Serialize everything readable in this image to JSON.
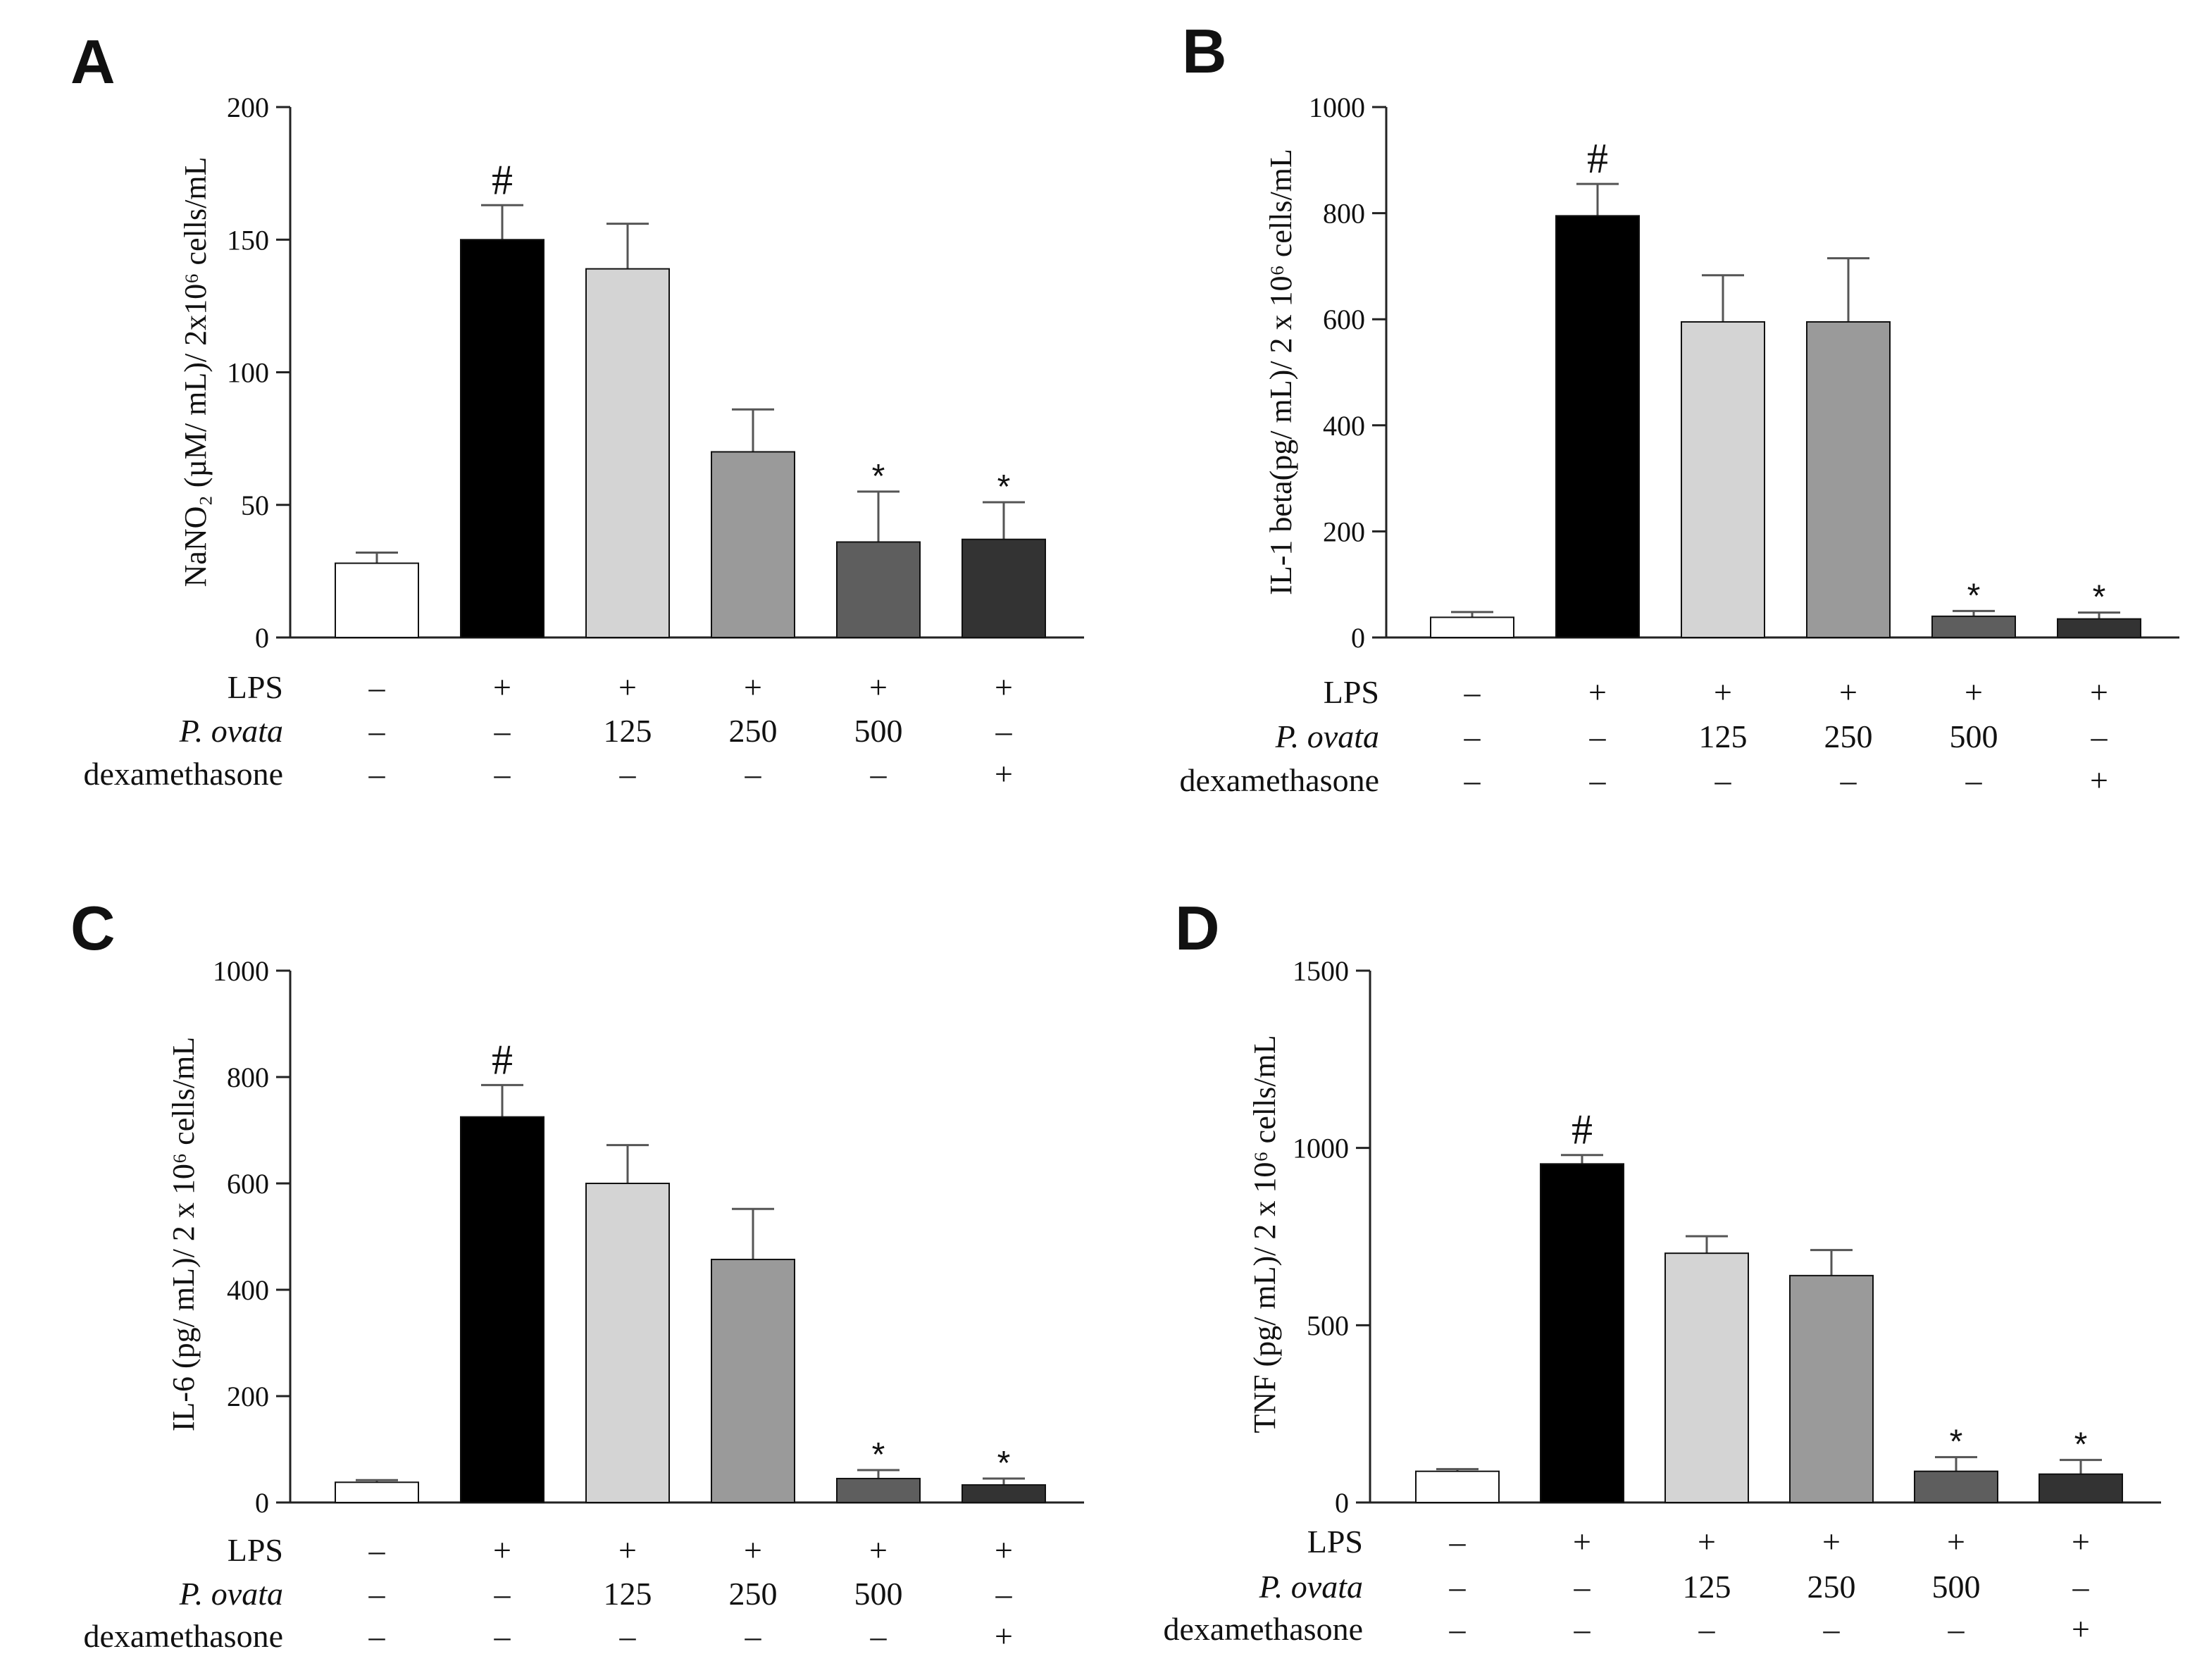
{
  "chart_data": [
    {
      "type": "bar",
      "panel": "A",
      "categories": [
        "Control",
        "LPS",
        "LPS + P. ovata 125",
        "LPS + P. ovata 250",
        "LPS + P. ovata 500",
        "LPS + dexamethasone"
      ],
      "values": [
        28,
        150,
        139,
        70,
        36,
        37
      ],
      "errors": [
        4,
        13,
        17,
        16,
        19,
        14
      ],
      "annotations": [
        "",
        "#",
        "",
        "",
        "*",
        "*"
      ],
      "ylim": [
        0,
        200
      ],
      "yticks": [
        0,
        50,
        100,
        150,
        200
      ],
      "ylabel": "NaNO₂ (µM/ mL)/ 2x10⁶ cells/mL",
      "xlabel": ""
    },
    {
      "type": "bar",
      "panel": "B",
      "categories": [
        "Control",
        "LPS",
        "LPS + P. ovata 125",
        "LPS + P. ovata 250",
        "LPS + P. ovata 500",
        "LPS + dexamethasone"
      ],
      "values": [
        38,
        795,
        595,
        595,
        40,
        35
      ],
      "errors": [
        10,
        60,
        88,
        120,
        10,
        12
      ],
      "annotations": [
        "",
        "#",
        "",
        "",
        "*",
        "*"
      ],
      "ylim": [
        0,
        1000
      ],
      "yticks": [
        0,
        200,
        400,
        600,
        800,
        1000
      ],
      "ylabel": "IL-1 beta(pg/ mL)/ 2 x 10⁶ cells/mL",
      "xlabel": ""
    },
    {
      "type": "bar",
      "panel": "C",
      "categories": [
        "Control",
        "LPS",
        "LPS + P. ovata 125",
        "LPS + P. ovata 250",
        "LPS + P. ovata 500",
        "LPS + dexamethasone"
      ],
      "values": [
        38,
        725,
        600,
        457,
        45,
        33
      ],
      "errors": [
        4,
        60,
        72,
        95,
        16,
        12
      ],
      "annotations": [
        "",
        "#",
        "",
        "",
        "*",
        "*"
      ],
      "ylim": [
        0,
        1000
      ],
      "yticks": [
        0,
        200,
        400,
        600,
        800,
        1000
      ],
      "ylabel": "IL-6 (pg/ mL)/ 2 x 10⁶ cells/mL",
      "xlabel": ""
    },
    {
      "type": "bar",
      "panel": "D",
      "categories": [
        "Control",
        "LPS",
        "LPS + P. ovata 125",
        "LPS + P. ovata 250",
        "LPS + P. ovata 500",
        "LPS + dexamethasone"
      ],
      "values": [
        88,
        955,
        703,
        640,
        88,
        80
      ],
      "errors": [
        6,
        25,
        48,
        72,
        40,
        40
      ],
      "annotations": [
        "",
        "#",
        "",
        "",
        "*",
        "*"
      ],
      "ylim": [
        0,
        1500
      ],
      "yticks": [
        0,
        500,
        1000,
        1500
      ],
      "ylabel": "TNF (pg/ mL)/ 2 x 10⁶ cells/mL",
      "xlabel": ""
    }
  ],
  "condition_table": {
    "row_labels": [
      "LPS",
      "P. ovata",
      "dexamethasone"
    ],
    "rows": [
      [
        "–",
        "+",
        "+",
        "+",
        "+",
        "+"
      ],
      [
        "–",
        "–",
        "125",
        "250",
        "500",
        "–"
      ],
      [
        "–",
        "–",
        "–",
        "–",
        "–",
        "+"
      ]
    ]
  },
  "colors": {
    "bars": [
      "#ffffff",
      "#000000",
      "#d4d4d4",
      "#9a9a9a",
      "#5e5e5e",
      "#333333"
    ],
    "stroke": "#111111",
    "axis": "#222222",
    "errorbar": "#555555"
  }
}
